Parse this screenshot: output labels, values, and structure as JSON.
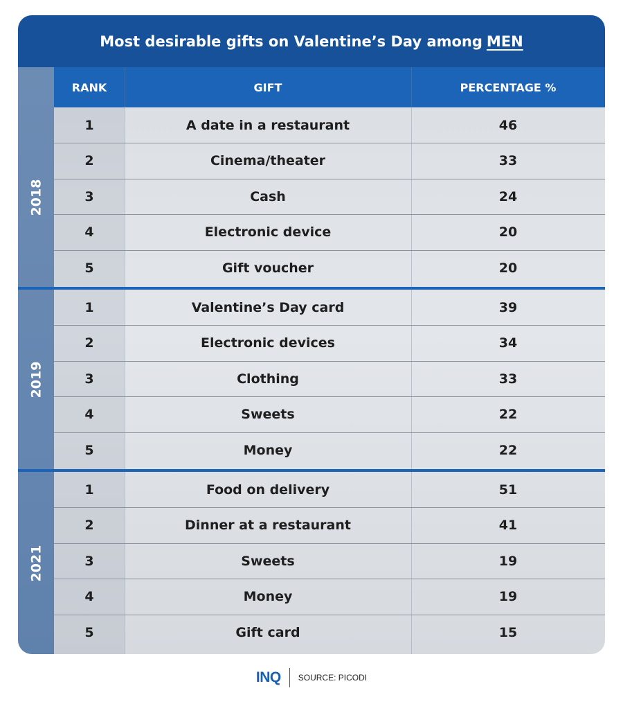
{
  "title": {
    "prefix": "Most desirable gifts on Valentine’s Day among",
    "emphasis": "MEN"
  },
  "colors": {
    "title_bg": "#17519a",
    "header_bg": "#1b64b8",
    "year_strip": "#6d8cb4",
    "body_bg": "#dfe2e6"
  },
  "chart_data": {
    "type": "table",
    "columns": [
      "RANK",
      "GIFT",
      "PERCENTAGE %"
    ],
    "groups": [
      {
        "year": "2018",
        "rows": [
          {
            "rank": "1",
            "gift": "A date in a restaurant",
            "percentage": 46
          },
          {
            "rank": "2",
            "gift": "Cinema/theater",
            "percentage": 33
          },
          {
            "rank": "3",
            "gift": "Cash",
            "percentage": 24
          },
          {
            "rank": "4",
            "gift": "Electronic device",
            "percentage": 20
          },
          {
            "rank": "5",
            "gift": "Gift voucher",
            "percentage": 20
          }
        ]
      },
      {
        "year": "2019",
        "rows": [
          {
            "rank": "1",
            "gift": "Valentine’s Day card",
            "percentage": 39
          },
          {
            "rank": "2",
            "gift": "Electronic devices",
            "percentage": 34
          },
          {
            "rank": "3",
            "gift": "Clothing",
            "percentage": 33
          },
          {
            "rank": "4",
            "gift": "Sweets",
            "percentage": 22
          },
          {
            "rank": "5",
            "gift": "Money",
            "percentage": 22
          }
        ]
      },
      {
        "year": "2021",
        "rows": [
          {
            "rank": "1",
            "gift": "Food on delivery",
            "percentage": 51
          },
          {
            "rank": "2",
            "gift": "Dinner at a restaurant",
            "percentage": 41
          },
          {
            "rank": "3",
            "gift": "Sweets",
            "percentage": 19
          },
          {
            "rank": "4",
            "gift": "Money",
            "percentage": 19
          },
          {
            "rank": "5",
            "gift": "Gift card",
            "percentage": 15
          }
        ]
      }
    ]
  },
  "footer": {
    "logo": "INQ",
    "source": "SOURCE: PICODI"
  }
}
